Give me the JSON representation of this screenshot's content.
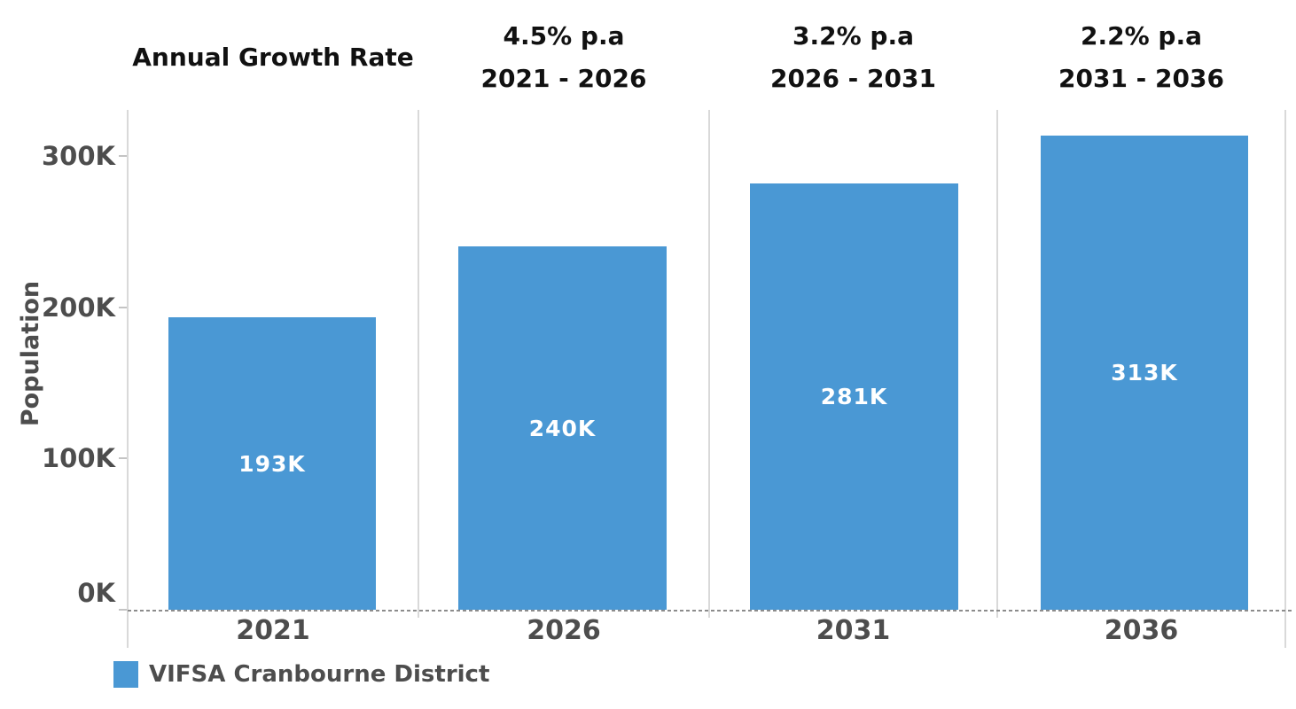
{
  "chart_data": {
    "type": "bar",
    "title": "Annual Growth Rate",
    "ylabel": "Population",
    "ylim_k": [
      0,
      330
    ],
    "yticks": [
      {
        "label": "0K",
        "value_k": 0
      },
      {
        "label": "100K",
        "value_k": 100
      },
      {
        "label": "200K",
        "value_k": 200
      },
      {
        "label": "300K",
        "value_k": 300
      }
    ],
    "categories": [
      "2021",
      "2026",
      "2031",
      "2036"
    ],
    "series": [
      {
        "name": "VIFSA Cranbourne District",
        "values_k": [
          193,
          240,
          281,
          313
        ],
        "bar_labels": [
          "193K",
          "240K",
          "281K",
          "313K"
        ]
      }
    ],
    "growth_headers": [
      {
        "rate": "4.5% p.a",
        "period": "2021 - 2026"
      },
      {
        "rate": "3.2% p.a",
        "period": "2026 - 2031"
      },
      {
        "rate": "2.2% p.a",
        "period": "2031 - 2036"
      }
    ],
    "legend": {
      "position": "bottom-left",
      "items": [
        {
          "label": "VIFSA Cranbourne District",
          "color": "#4a98d4"
        }
      ]
    },
    "grid": "panel-dividers-only",
    "zero_line_style": "dashed",
    "colors": {
      "bar": "#4a98d4",
      "bar_label": "#ffffff",
      "header_text": "#111111",
      "axis_text": "#4d4d4d",
      "divider": "#d9d9d9",
      "zero_line": "#8c8c8c",
      "tick": "#c4c4c4",
      "background": "#ffffff"
    }
  }
}
